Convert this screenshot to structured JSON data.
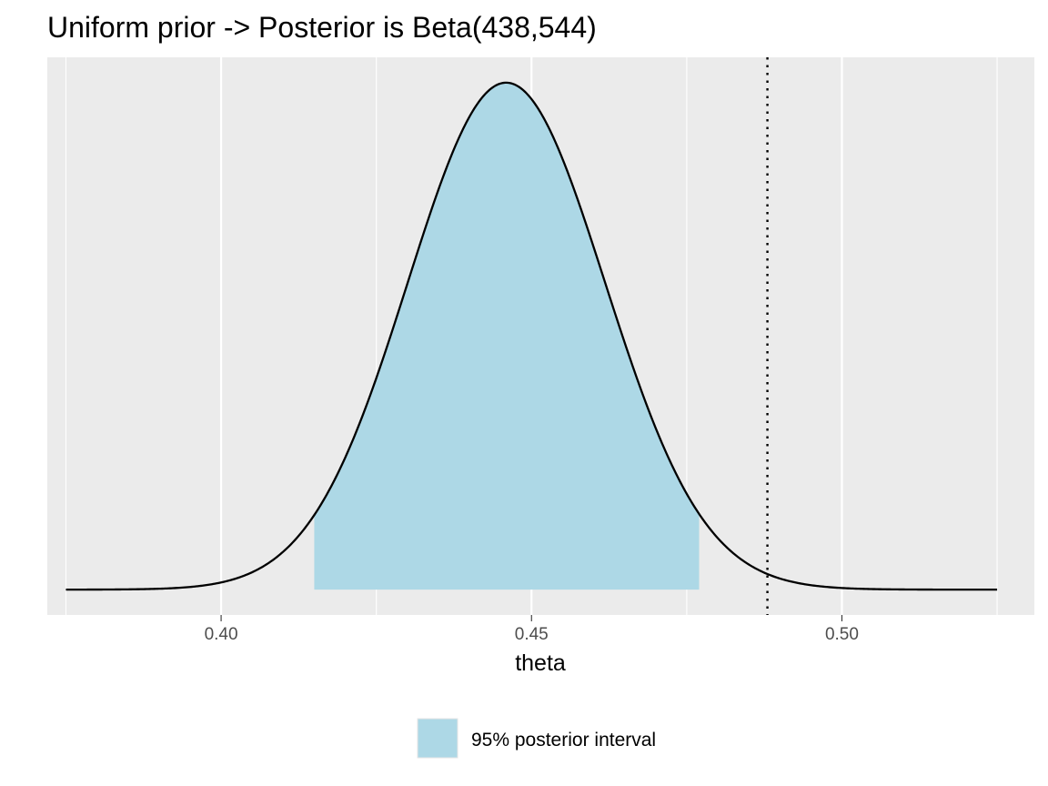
{
  "chart_data": {
    "type": "area",
    "title": "Uniform prior -> Posterior is Beta(438,544)",
    "xlabel": "theta",
    "ylabel": "",
    "distribution": {
      "family": "Beta",
      "alpha": 438,
      "beta": 544
    },
    "xlim": [
      0.372,
      0.531
    ],
    "curve_x_range": [
      0.375,
      0.525
    ],
    "xticks": [
      0.4,
      0.45,
      0.5
    ],
    "xtick_labels": [
      "0.40",
      "0.45",
      "0.50"
    ],
    "y_axis_shown": false,
    "grid": true,
    "interval": {
      "name": "95% posterior interval",
      "lower": 0.415,
      "upper": 0.477,
      "fill": "#add8e6"
    },
    "reference_line": {
      "x": 0.488,
      "style": "dotted",
      "color": "#000000"
    },
    "legend": {
      "position": "bottom",
      "entries": [
        "95% posterior interval"
      ]
    },
    "colors": {
      "panel": "#ebebeb",
      "grid": "#ffffff",
      "curve": "#000000"
    }
  }
}
